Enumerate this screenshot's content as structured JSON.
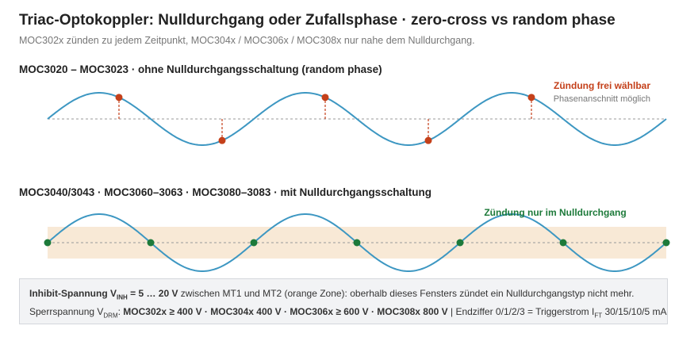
{
  "header": {
    "title": "Triac-Optokoppler: Nulldurchgang oder Zufallsphase · zero-cross vs random phase",
    "subtitle": "MOC302x zünden zu jedem Zeitpunkt, MOC304x / MOC306x / MOC308x nur nahe dem Nulldurchgang."
  },
  "random_phase": {
    "title": "MOC3020 – MOC3023 · ohne Nulldurchgangsschaltung (random phase)",
    "annotation": "Zündung frei wählbar",
    "annotation_sub": "Phasenanschnitt möglich"
  },
  "zero_cross": {
    "title": "MOC3040/3043 · MOC3060–3063 · MOC3080–3083 · mit Nulldurchgangsschaltung",
    "annotation": "Zündung nur im Nulldurchgang"
  },
  "note": {
    "inhibit_label": "Inhibit-Spannung V",
    "inhibit_sub": "INH",
    "inhibit_value": " = 5 … 20 V",
    "inhibit_text": " zwischen MT1 und MT2 (orange Zone): oberhalb dieses Fensters zündet ein Nulldurchgangstyp nicht mehr.",
    "sperr_label": "Sperrspannung V",
    "sperr_sub": "DRM",
    "sperr_colon": ": ",
    "sperr_values": "MOC302x ≥ 400 V · MOC304x 400 V · MOC306x ≥ 600 V · MOC308x 800 V",
    "sperr_text": " | Endziffer 0/1/2/3 = Triggerstrom I",
    "ift_sub": "FT",
    "ift_text": " 30/15/10/5 mA"
  },
  "colors": {
    "wave": "#3d97c2",
    "axis": "#999999",
    "random_marker": "#c4401a",
    "zero_marker": "#1d7a3a",
    "inhibit_zone": "#f8e9d6"
  }
}
